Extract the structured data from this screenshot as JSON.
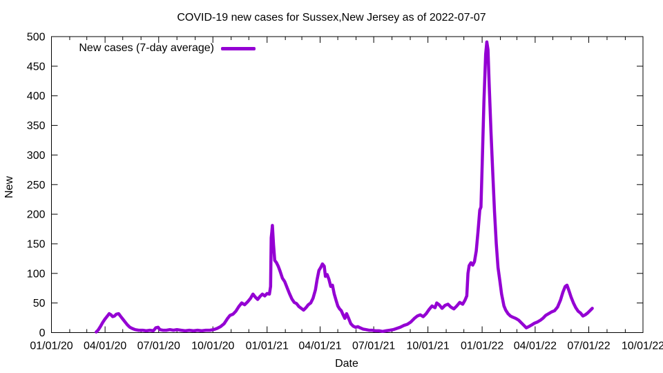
{
  "chart_data": {
    "type": "line",
    "title": "COVID-19 new cases for Sussex,New Jersey as of 2022-07-07",
    "xlabel": "Date",
    "ylabel": "New",
    "grid": false,
    "legend_position": "top-left-inside",
    "ylim": [
      0,
      500
    ],
    "y_ticks": [
      0,
      50,
      100,
      150,
      200,
      250,
      300,
      350,
      400,
      450,
      500
    ],
    "x_range": [
      "2020-01-01",
      "2022-10-01"
    ],
    "x_minor_ticks": "monthly",
    "x_ticks": [
      {
        "label": "01/01/20",
        "date": "2020-01-01"
      },
      {
        "label": "04/01/20",
        "date": "2020-04-01"
      },
      {
        "label": "07/01/20",
        "date": "2020-07-01"
      },
      {
        "label": "10/01/20",
        "date": "2020-10-01"
      },
      {
        "label": "01/01/21",
        "date": "2021-01-01"
      },
      {
        "label": "04/01/21",
        "date": "2021-04-01"
      },
      {
        "label": "07/01/21",
        "date": "2021-07-01"
      },
      {
        "label": "10/01/21",
        "date": "2021-10-01"
      },
      {
        "label": "01/01/22",
        "date": "2022-01-01"
      },
      {
        "label": "04/01/22",
        "date": "2022-04-01"
      },
      {
        "label": "07/01/22",
        "date": "2022-07-01"
      },
      {
        "label": "10/01/22",
        "date": "2022-10-01"
      }
    ],
    "series": [
      {
        "name": "New cases (7-day average)",
        "color": "#9400D3",
        "line_width": 4.5,
        "points": [
          [
            "2020-03-17",
            1
          ],
          [
            "2020-03-20",
            4
          ],
          [
            "2020-03-24",
            10
          ],
          [
            "2020-03-28",
            17
          ],
          [
            "2020-04-01",
            23
          ],
          [
            "2020-04-05",
            28
          ],
          [
            "2020-04-08",
            32
          ],
          [
            "2020-04-11",
            30
          ],
          [
            "2020-04-14",
            27
          ],
          [
            "2020-04-17",
            28
          ],
          [
            "2020-04-20",
            31
          ],
          [
            "2020-04-24",
            32
          ],
          [
            "2020-04-27",
            28
          ],
          [
            "2020-05-01",
            23
          ],
          [
            "2020-05-05",
            18
          ],
          [
            "2020-05-09",
            13
          ],
          [
            "2020-05-13",
            9
          ],
          [
            "2020-05-17",
            7
          ],
          [
            "2020-05-22",
            5
          ],
          [
            "2020-05-28",
            4
          ],
          [
            "2020-06-04",
            4
          ],
          [
            "2020-06-10",
            3
          ],
          [
            "2020-06-16",
            4
          ],
          [
            "2020-06-22",
            3
          ],
          [
            "2020-06-26",
            8
          ],
          [
            "2020-06-30",
            9
          ],
          [
            "2020-07-03",
            5
          ],
          [
            "2020-07-08",
            4
          ],
          [
            "2020-07-14",
            4
          ],
          [
            "2020-07-20",
            5
          ],
          [
            "2020-07-26",
            4
          ],
          [
            "2020-08-01",
            5
          ],
          [
            "2020-08-08",
            4
          ],
          [
            "2020-08-15",
            3
          ],
          [
            "2020-08-22",
            4
          ],
          [
            "2020-08-29",
            3
          ],
          [
            "2020-09-05",
            4
          ],
          [
            "2020-09-12",
            3
          ],
          [
            "2020-09-19",
            4
          ],
          [
            "2020-09-26",
            4
          ],
          [
            "2020-10-02",
            5
          ],
          [
            "2020-10-08",
            7
          ],
          [
            "2020-10-14",
            10
          ],
          [
            "2020-10-20",
            15
          ],
          [
            "2020-10-26",
            24
          ],
          [
            "2020-10-30",
            29
          ],
          [
            "2020-11-04",
            31
          ],
          [
            "2020-11-09",
            36
          ],
          [
            "2020-11-14",
            44
          ],
          [
            "2020-11-19",
            50
          ],
          [
            "2020-11-24",
            47
          ],
          [
            "2020-11-29",
            52
          ],
          [
            "2020-12-04",
            58
          ],
          [
            "2020-12-08",
            65
          ],
          [
            "2020-12-12",
            60
          ],
          [
            "2020-12-16",
            56
          ],
          [
            "2020-12-20",
            61
          ],
          [
            "2020-12-24",
            65
          ],
          [
            "2020-12-28",
            62
          ],
          [
            "2021-01-01",
            66
          ],
          [
            "2021-01-05",
            65
          ],
          [
            "2021-01-07",
            78
          ],
          [
            "2021-01-08",
            160
          ],
          [
            "2021-01-09",
            170
          ],
          [
            "2021-01-10",
            181
          ],
          [
            "2021-01-12",
            148
          ],
          [
            "2021-01-14",
            122
          ],
          [
            "2021-01-17",
            118
          ],
          [
            "2021-01-20",
            112
          ],
          [
            "2021-01-23",
            104
          ],
          [
            "2021-01-27",
            92
          ],
          [
            "2021-01-31",
            86
          ],
          [
            "2021-02-04",
            76
          ],
          [
            "2021-02-08",
            66
          ],
          [
            "2021-02-12",
            57
          ],
          [
            "2021-02-16",
            51
          ],
          [
            "2021-02-20",
            49
          ],
          [
            "2021-02-24",
            44
          ],
          [
            "2021-02-28",
            41
          ],
          [
            "2021-03-04",
            38
          ],
          [
            "2021-03-08",
            42
          ],
          [
            "2021-03-12",
            47
          ],
          [
            "2021-03-16",
            50
          ],
          [
            "2021-03-20",
            58
          ],
          [
            "2021-03-24",
            72
          ],
          [
            "2021-03-27",
            90
          ],
          [
            "2021-03-30",
            105
          ],
          [
            "2021-04-02",
            110
          ],
          [
            "2021-04-05",
            116
          ],
          [
            "2021-04-08",
            112
          ],
          [
            "2021-04-10",
            95
          ],
          [
            "2021-04-13",
            98
          ],
          [
            "2021-04-16",
            90
          ],
          [
            "2021-04-19",
            78
          ],
          [
            "2021-04-22",
            80
          ],
          [
            "2021-04-25",
            65
          ],
          [
            "2021-04-28",
            55
          ],
          [
            "2021-05-01",
            45
          ],
          [
            "2021-05-04",
            40
          ],
          [
            "2021-05-07",
            37
          ],
          [
            "2021-05-10",
            30
          ],
          [
            "2021-05-13",
            24
          ],
          [
            "2021-05-16",
            32
          ],
          [
            "2021-05-19",
            25
          ],
          [
            "2021-05-23",
            15
          ],
          [
            "2021-05-27",
            11
          ],
          [
            "2021-05-31",
            9
          ],
          [
            "2021-06-04",
            10
          ],
          [
            "2021-06-08",
            8
          ],
          [
            "2021-06-13",
            6
          ],
          [
            "2021-06-18",
            5
          ],
          [
            "2021-06-23",
            4
          ],
          [
            "2021-06-28",
            4
          ],
          [
            "2021-07-04",
            3
          ],
          [
            "2021-07-10",
            3
          ],
          [
            "2021-07-16",
            2
          ],
          [
            "2021-07-22",
            3
          ],
          [
            "2021-07-28",
            4
          ],
          [
            "2021-08-03",
            5
          ],
          [
            "2021-08-09",
            7
          ],
          [
            "2021-08-15",
            9
          ],
          [
            "2021-08-21",
            12
          ],
          [
            "2021-08-27",
            14
          ],
          [
            "2021-09-02",
            18
          ],
          [
            "2021-09-08",
            24
          ],
          [
            "2021-09-13",
            28
          ],
          [
            "2021-09-18",
            30
          ],
          [
            "2021-09-23",
            27
          ],
          [
            "2021-09-28",
            32
          ],
          [
            "2021-10-03",
            39
          ],
          [
            "2021-10-08",
            45
          ],
          [
            "2021-10-13",
            42
          ],
          [
            "2021-10-16",
            50
          ],
          [
            "2021-10-20",
            47
          ],
          [
            "2021-10-25",
            41
          ],
          [
            "2021-10-30",
            46
          ],
          [
            "2021-11-04",
            48
          ],
          [
            "2021-11-09",
            43
          ],
          [
            "2021-11-14",
            40
          ],
          [
            "2021-11-19",
            45
          ],
          [
            "2021-11-24",
            51
          ],
          [
            "2021-11-29",
            48
          ],
          [
            "2021-12-03",
            55
          ],
          [
            "2021-12-06",
            62
          ],
          [
            "2021-12-08",
            100
          ],
          [
            "2021-12-10",
            113
          ],
          [
            "2021-12-13",
            118
          ],
          [
            "2021-12-16",
            114
          ],
          [
            "2021-12-19",
            120
          ],
          [
            "2021-12-22",
            138
          ],
          [
            "2021-12-25",
            170
          ],
          [
            "2021-12-28",
            207
          ],
          [
            "2021-12-30",
            212
          ],
          [
            "2022-01-01",
            280
          ],
          [
            "2022-01-04",
            390
          ],
          [
            "2022-01-07",
            470
          ],
          [
            "2022-01-09",
            491
          ],
          [
            "2022-01-11",
            478
          ],
          [
            "2022-01-13",
            420
          ],
          [
            "2022-01-16",
            340
          ],
          [
            "2022-01-19",
            270
          ],
          [
            "2022-01-22",
            205
          ],
          [
            "2022-01-25",
            150
          ],
          [
            "2022-01-28",
            110
          ],
          [
            "2022-01-31",
            88
          ],
          [
            "2022-02-03",
            65
          ],
          [
            "2022-02-07",
            45
          ],
          [
            "2022-02-10",
            38
          ],
          [
            "2022-02-14",
            32
          ],
          [
            "2022-02-18",
            28
          ],
          [
            "2022-02-22",
            26
          ],
          [
            "2022-02-27",
            24
          ],
          [
            "2022-03-04",
            21
          ],
          [
            "2022-03-09",
            16
          ],
          [
            "2022-03-13",
            12
          ],
          [
            "2022-03-17",
            8
          ],
          [
            "2022-03-21",
            10
          ],
          [
            "2022-03-26",
            13
          ],
          [
            "2022-03-31",
            16
          ],
          [
            "2022-04-05",
            18
          ],
          [
            "2022-04-10",
            21
          ],
          [
            "2022-04-14",
            24
          ],
          [
            "2022-04-19",
            29
          ],
          [
            "2022-04-24",
            32
          ],
          [
            "2022-04-29",
            35
          ],
          [
            "2022-05-04",
            37
          ],
          [
            "2022-05-09",
            43
          ],
          [
            "2022-05-14",
            55
          ],
          [
            "2022-05-18",
            68
          ],
          [
            "2022-05-22",
            78
          ],
          [
            "2022-05-25",
            80
          ],
          [
            "2022-05-28",
            72
          ],
          [
            "2022-06-01",
            60
          ],
          [
            "2022-06-05",
            50
          ],
          [
            "2022-06-09",
            42
          ],
          [
            "2022-06-13",
            36
          ],
          [
            "2022-06-17",
            33
          ],
          [
            "2022-06-21",
            28
          ],
          [
            "2022-06-25",
            30
          ],
          [
            "2022-06-29",
            33
          ],
          [
            "2022-07-03",
            37
          ],
          [
            "2022-07-07",
            41
          ]
        ]
      }
    ]
  }
}
